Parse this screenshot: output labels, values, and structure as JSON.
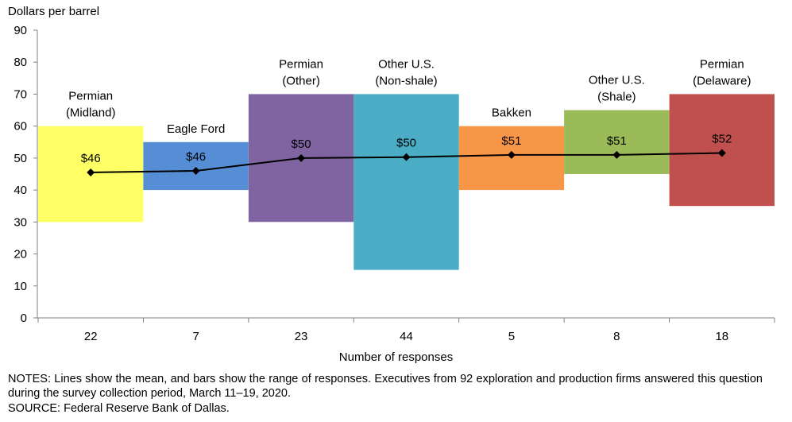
{
  "chart_data": {
    "type": "bar",
    "description_mode": "floating-range bars with mean line",
    "ylabel": "Dollars per barrel",
    "xlabel": "Number of responses",
    "ylim": [
      0,
      90
    ],
    "yticks": [
      0,
      10,
      20,
      30,
      40,
      50,
      60,
      70,
      80,
      90
    ],
    "grid": false,
    "categories": [
      {
        "name": "Permian\n(Midland)",
        "responses": "22",
        "low": 30,
        "high": 60,
        "mean": 45.5,
        "mean_label": "$46",
        "color": "#ffff66"
      },
      {
        "name": "Eagle Ford",
        "responses": "7",
        "low": 40,
        "high": 55,
        "mean": 46,
        "mean_label": "$46",
        "color": "#558ed5"
      },
      {
        "name": "Permian\n(Other)",
        "responses": "23",
        "low": 30,
        "high": 70,
        "mean": 50,
        "mean_label": "$50",
        "color": "#8064a2"
      },
      {
        "name": "Other U.S.\n(Non-shale)",
        "responses": "44",
        "low": 15,
        "high": 70,
        "mean": 50.3,
        "mean_label": "$50",
        "color": "#4bacc6"
      },
      {
        "name": "Bakken",
        "responses": "5",
        "low": 40,
        "high": 60,
        "mean": 51,
        "mean_label": "$51",
        "color": "#f79646"
      },
      {
        "name": "Other U.S.\n(Shale)",
        "responses": "8",
        "low": 45,
        "high": 65,
        "mean": 51,
        "mean_label": "$51",
        "color": "#9bbb59"
      },
      {
        "name": "Permian\n(Delaware)",
        "responses": "18",
        "low": 35,
        "high": 70,
        "mean": 51.6,
        "mean_label": "$52",
        "color": "#c0504d"
      }
    ]
  },
  "notes": "NOTES: Lines show the mean, and bars show the range of responses. Executives from 92 exploration and production firms answered this question during the survey collection period, March 11–19, 2020.",
  "source": "SOURCE: Federal Reserve Bank of Dallas."
}
